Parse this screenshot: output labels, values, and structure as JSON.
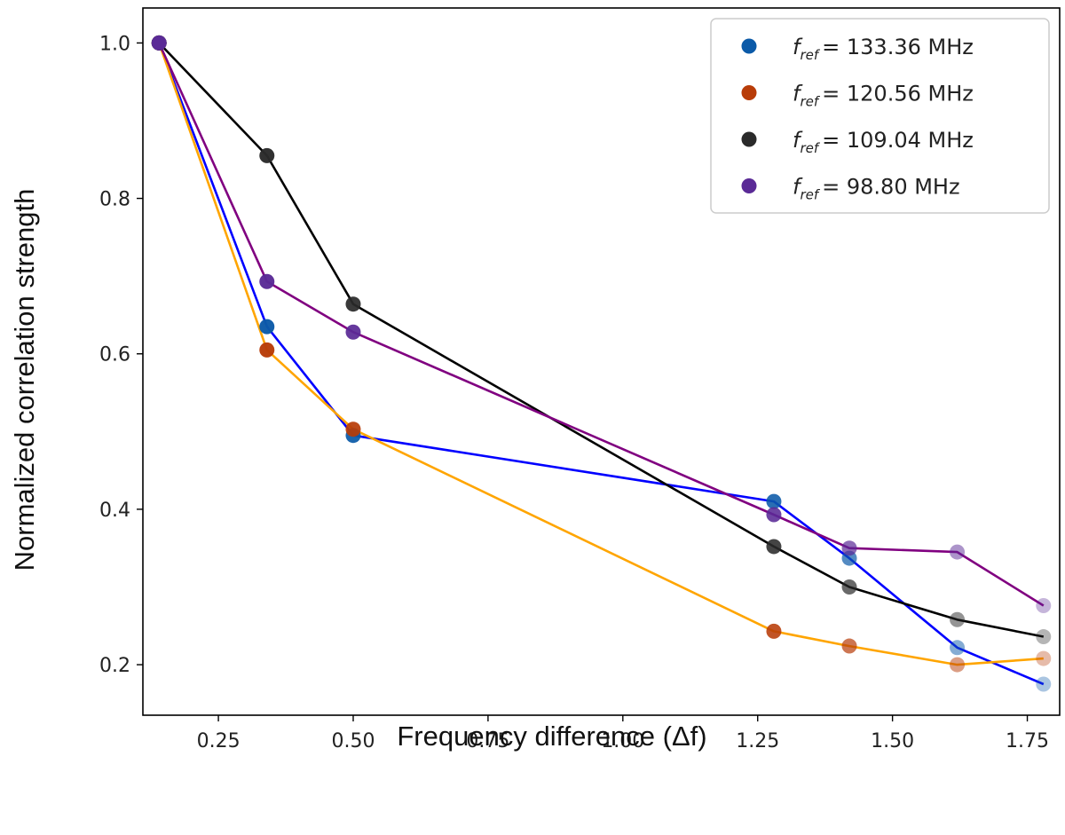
{
  "chart_data": {
    "type": "line",
    "title": "",
    "xlabel": "Frequency difference (Δf)",
    "ylabel": "Normalized correlation strength",
    "xlim": [
      0.11,
      1.81
    ],
    "ylim": [
      0.135,
      1.045
    ],
    "xticks": [
      0.25,
      0.5,
      0.75,
      1.0,
      1.25,
      1.5,
      1.75
    ],
    "xtick_labels": [
      "0.25",
      "0.50",
      "0.75",
      "1.00",
      "1.25",
      "1.50",
      "1.75"
    ],
    "yticks": [
      0.2,
      0.4,
      0.6,
      0.8,
      1.0
    ],
    "ytick_labels": [
      "0.2",
      "0.4",
      "0.6",
      "0.8",
      "1.0"
    ],
    "grid": false,
    "legend_position": "top-right",
    "series": [
      {
        "name": "f_ref = 133.36 MHz",
        "legend_symbol": "f",
        "legend_subscript": "ref",
        "legend_value": "= 133.36 MHz",
        "line_color": "#0000ff",
        "marker_color": "#0b5aa8",
        "x": [
          0.14,
          0.34,
          0.5,
          1.28,
          1.42,
          1.62,
          1.78
        ],
        "y": [
          1.0,
          0.635,
          0.495,
          0.41,
          0.337,
          0.222,
          0.175
        ]
      },
      {
        "name": "f_ref = 120.56 MHz",
        "legend_symbol": "f",
        "legend_subscript": "ref",
        "legend_value": "= 120.56 MHz",
        "line_color": "#ffa500",
        "marker_color": "#b83c08",
        "x": [
          0.14,
          0.34,
          0.5,
          1.28,
          1.42,
          1.62,
          1.78
        ],
        "y": [
          1.0,
          0.605,
          0.503,
          0.243,
          0.224,
          0.2,
          0.208
        ]
      },
      {
        "name": "f_ref = 109.04 MHz",
        "legend_symbol": "f",
        "legend_subscript": "ref",
        "legend_value": "= 109.04 MHz",
        "line_color": "#000000",
        "marker_color": "#2a2a2a",
        "x": [
          0.14,
          0.34,
          0.5,
          1.28,
          1.42,
          1.62,
          1.78
        ],
        "y": [
          1.0,
          0.855,
          0.664,
          0.352,
          0.3,
          0.258,
          0.236
        ]
      },
      {
        "name": "f_ref = 98.80 MHz",
        "legend_symbol": "f",
        "legend_subscript": "ref",
        "legend_value": "= 98.80 MHz",
        "line_color": "#800080",
        "marker_color": "#5a2a96",
        "x": [
          0.14,
          0.34,
          0.5,
          1.28,
          1.42,
          1.62,
          1.78
        ],
        "y": [
          1.0,
          0.693,
          0.628,
          0.393,
          0.35,
          0.345,
          0.276
        ]
      }
    ]
  }
}
